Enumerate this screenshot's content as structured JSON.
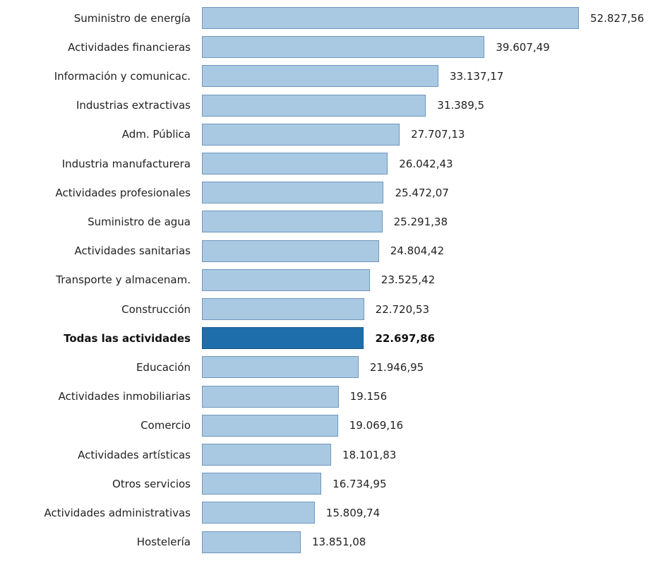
{
  "chart_data": {
    "type": "bar",
    "orientation": "horizontal",
    "categories": [
      "Suministro de energía",
      "Actividades financieras",
      "Información y comunicac.",
      "Industrias extractivas",
      "Adm. Pública",
      "Industria manufacturera",
      "Actividades profesionales",
      "Suministro de agua",
      "Actividades sanitarias",
      "Transporte y almacenam.",
      "Construcción",
      "Todas las actividades",
      "Educación",
      "Actividades inmobiliarias",
      "Comercio",
      "Actividades artísticas",
      "Otros servicios",
      "Actividades administrativas",
      "Hostelería"
    ],
    "values": [
      52827.56,
      39607.49,
      33137.17,
      31389.5,
      27707.13,
      26042.43,
      25472.07,
      25291.38,
      24804.42,
      23525.42,
      22720.53,
      22697.86,
      21946.95,
      19156,
      19069.16,
      18101.83,
      16734.95,
      15809.74,
      13851.08
    ],
    "value_labels": [
      "52.827,56",
      "39.607,49",
      "33.137,17",
      "31.389,5",
      "27.707,13",
      "26.042,43",
      "25.472,07",
      "25.291,38",
      "24.804,42",
      "23.525,42",
      "22.720,53",
      "22.697,86",
      "21.946,95",
      "19.156",
      "19.069,16",
      "18.101,83",
      "16.734,95",
      "15.809,74",
      "13.851,08"
    ],
    "highlighted_category": "Todas las actividades",
    "title": "",
    "xlabel": "",
    "ylabel": "",
    "xlim": [
      0,
      52827.56
    ],
    "grid": false,
    "legend": "none",
    "colors": {
      "bar": "#a9c9e3",
      "bar_border": "#6f97bd",
      "highlight": "#1f6eac",
      "highlight_border": "#17598c",
      "text": "#222222"
    }
  }
}
